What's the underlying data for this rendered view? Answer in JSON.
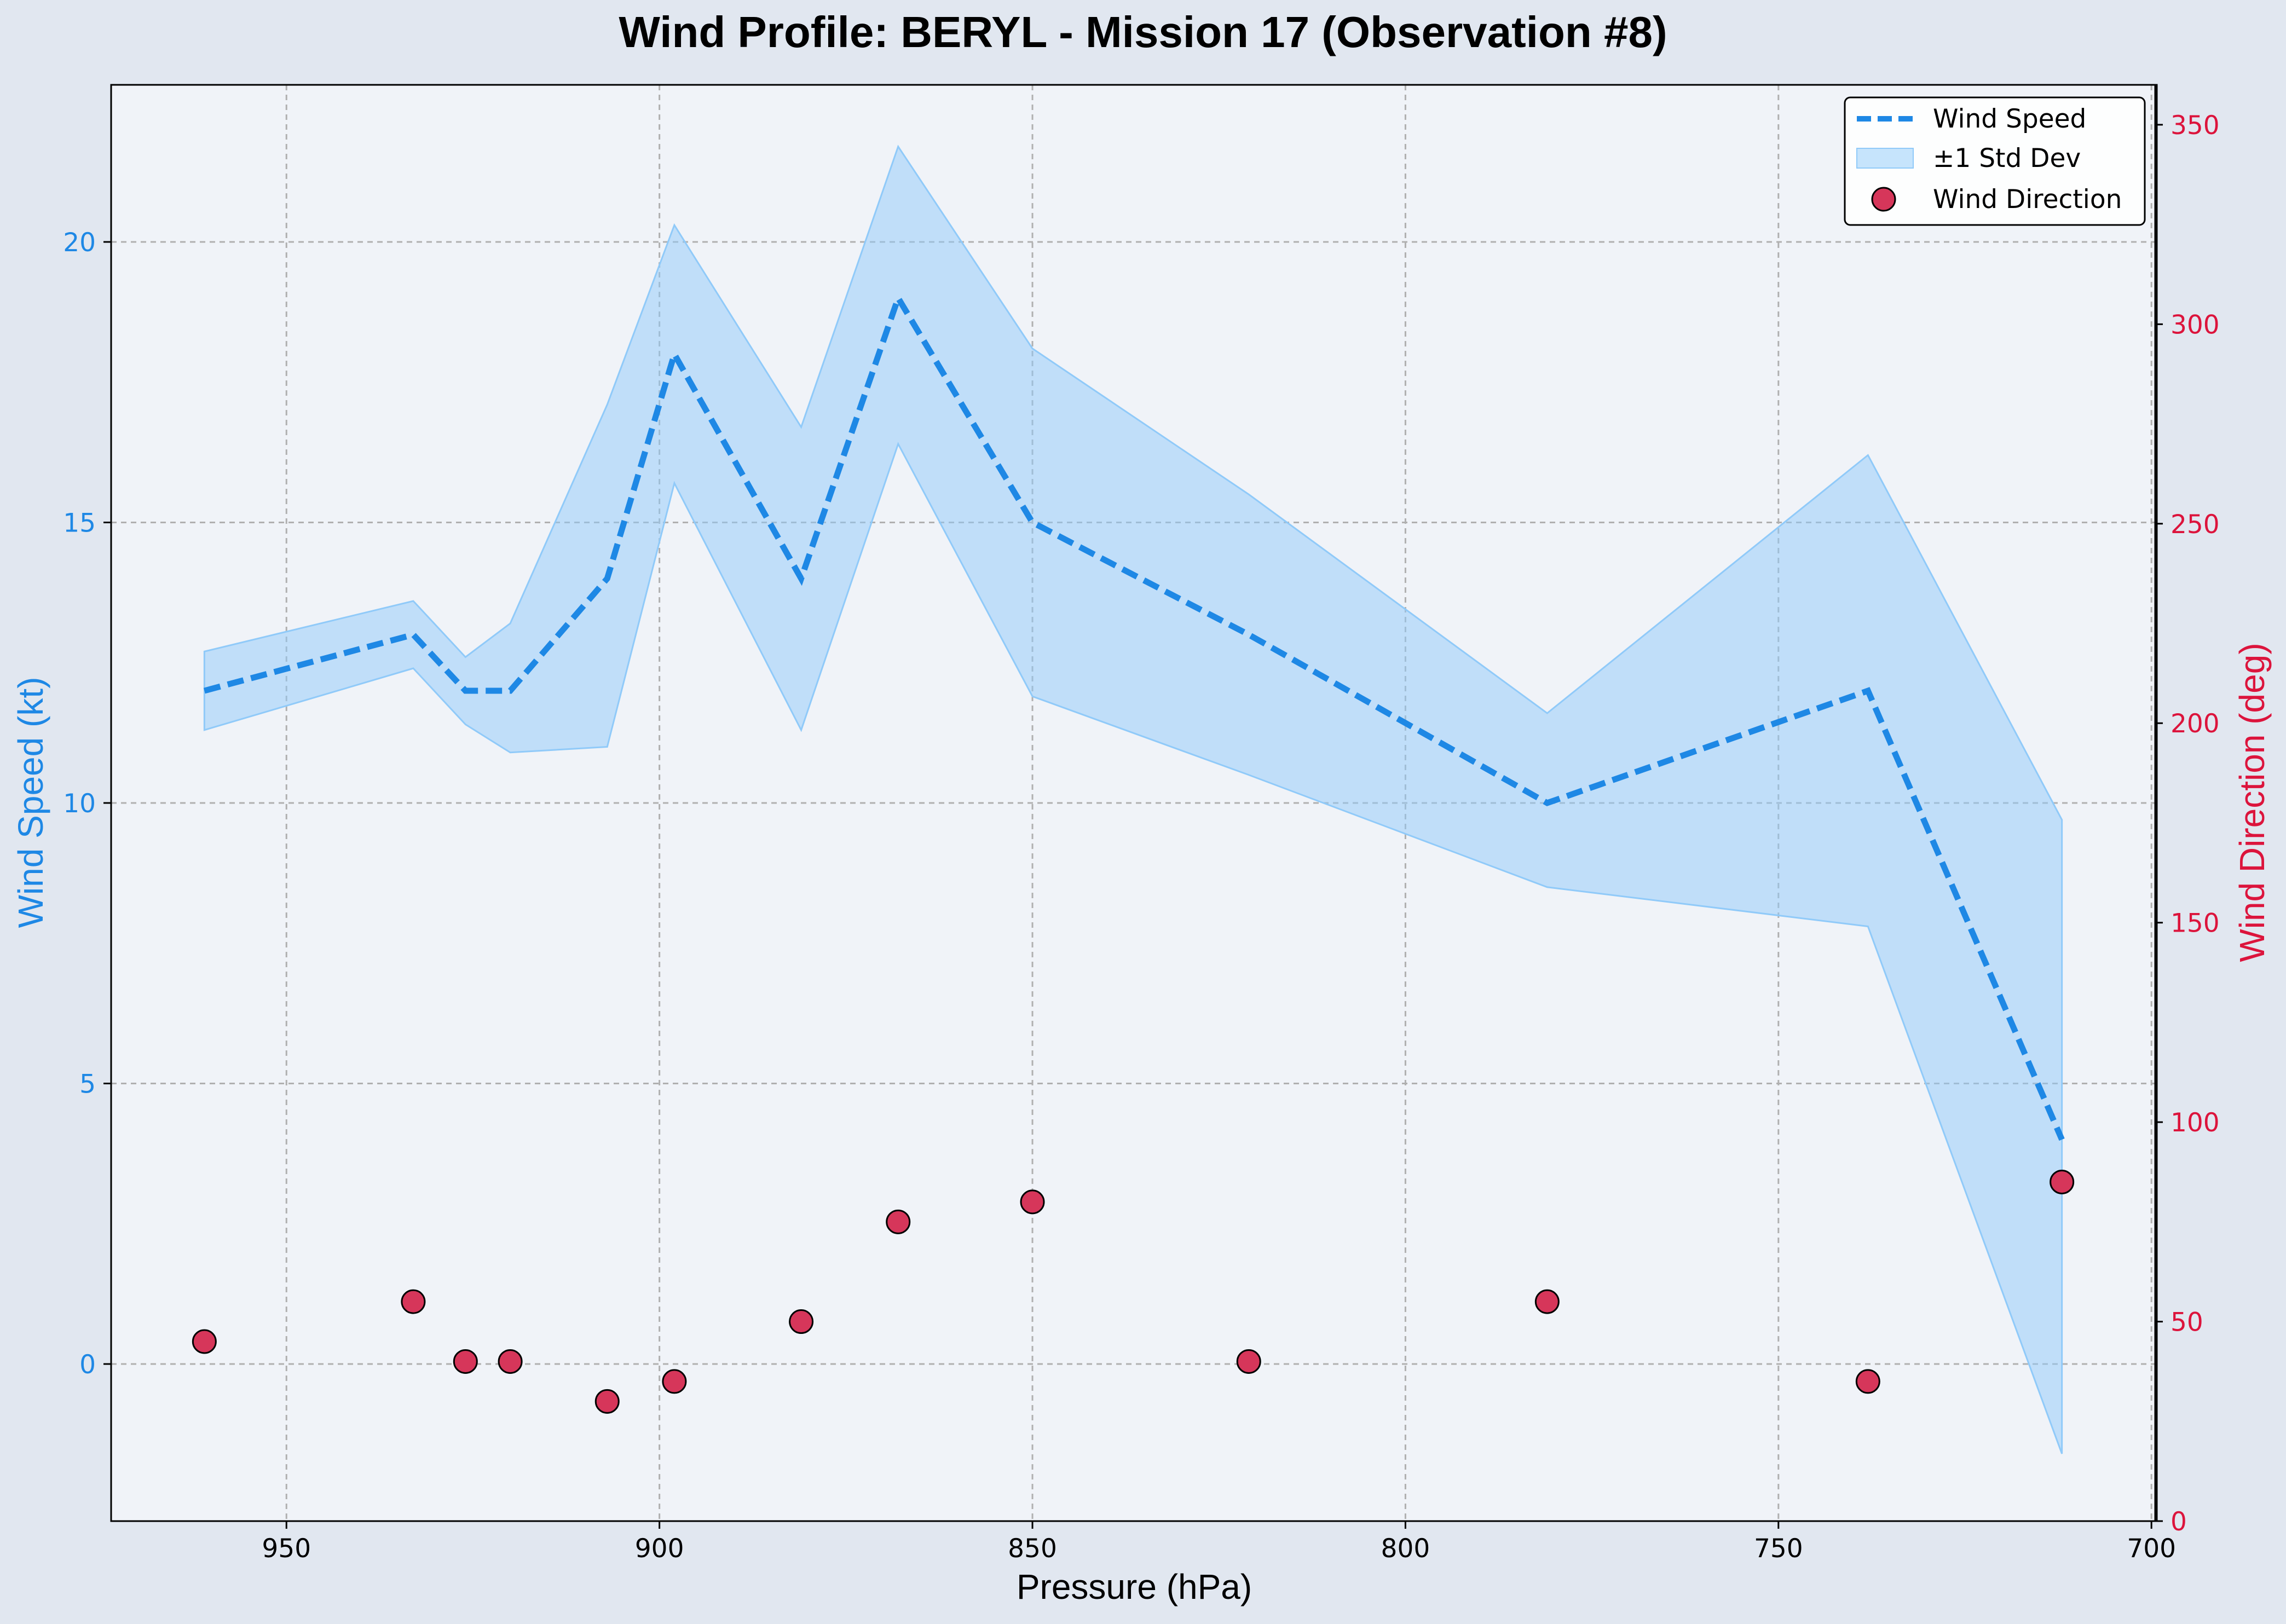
{
  "chart_data": {
    "type": "line",
    "title": "Wind Profile: BERYL - Mission 17 (Observation #8)",
    "xlabel": "Pressure (hPa)",
    "ylabel": "Wind Speed (kt)",
    "y2label": "Wind Direction (deg)",
    "x_reversed": true,
    "xlim": [
      973.5,
      699.5
    ],
    "ylim": [
      -2.8,
      22.8
    ],
    "y2lim": [
      0,
      360
    ],
    "x_ticks": [
      950,
      900,
      850,
      800,
      750,
      700
    ],
    "y_ticks": [
      0,
      5,
      10,
      15,
      20
    ],
    "y2_ticks": [
      0,
      50,
      100,
      150,
      200,
      250,
      300,
      350
    ],
    "grid": true,
    "legend_position": "top-right",
    "x": [
      961,
      933,
      926,
      920,
      907,
      898,
      881,
      868,
      850,
      821,
      781,
      738,
      712
    ],
    "series": [
      {
        "name": "Wind Speed",
        "axis": "left",
        "style": "dashed",
        "color": "#1e88e5",
        "values": [
          12,
          13,
          12,
          12,
          14,
          18,
          14,
          19,
          15,
          13,
          10,
          12,
          4
        ]
      },
      {
        "name": "±1 Std Dev",
        "axis": "left",
        "style": "band",
        "color": "#90caf9",
        "upper": [
          12.7,
          13.6,
          12.6,
          13.2,
          17.1,
          20.3,
          16.7,
          21.7,
          18.1,
          15.5,
          11.6,
          16.2,
          9.7
        ],
        "lower": [
          11.3,
          12.4,
          11.4,
          10.9,
          11.0,
          15.7,
          11.3,
          16.4,
          11.9,
          10.5,
          8.5,
          7.8,
          -1.6
        ]
      },
      {
        "name": "Wind Direction",
        "axis": "right",
        "style": "scatter",
        "color": "#d6365a",
        "values": [
          45,
          55,
          40,
          40,
          30,
          35,
          50,
          75,
          80,
          40,
          55,
          35,
          85
        ]
      }
    ]
  },
  "colors": {
    "figure_bg": "#e1e7f0",
    "plot_bg": "#f0f3f8",
    "left_axis": "#1e88e5",
    "right_axis": "#dc143c",
    "line": "#1e88e5",
    "band": "#90caf9",
    "marker": "#d6365a"
  }
}
